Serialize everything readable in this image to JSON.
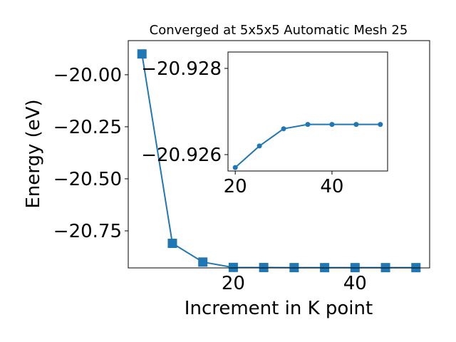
{
  "chart_data": [
    {
      "type": "line",
      "title": "Converged at 5x5x5 Automatic Mesh 25",
      "xlabel": "Increment in K point",
      "ylabel": "Energy (eV)",
      "xlim": [
        2.75,
        52.25
      ],
      "ylim": [
        -20.928,
        -19.836
      ],
      "xticks": [
        20,
        40
      ],
      "yticks": [
        -20.0,
        -20.25,
        -20.5,
        -20.75
      ],
      "ytick_labels": [
        "−20.00",
        "−20.25",
        "−20.50",
        "−20.75"
      ],
      "marker": "square",
      "color": "#1f77b4",
      "grid": false,
      "x": [
        5,
        10,
        15,
        20,
        25,
        30,
        35,
        40,
        45,
        50
      ],
      "y": [
        -19.9,
        -20.81,
        -20.9,
        -20.9257,
        -20.9262,
        -20.9266,
        -20.9267,
        -20.9267,
        -20.9267,
        -20.9267
      ]
    },
    {
      "type": "line",
      "title": "",
      "xlabel": "",
      "ylabel": "",
      "xlim": [
        18.5,
        51.5
      ],
      "ylim": [
        -20.92562,
        -20.92838
      ],
      "xticks": [
        20,
        40
      ],
      "yticks": [
        -20.928,
        -20.926
      ],
      "ytick_labels": [
        "−20.928",
        "−20.926"
      ],
      "marker": "circle",
      "color": "#1f77b4",
      "grid": false,
      "x": [
        20,
        25,
        30,
        35,
        40,
        45,
        50
      ],
      "y": [
        -20.9257,
        -20.9262,
        -20.9266,
        -20.9267,
        -20.9267,
        -20.9267,
        -20.9267
      ]
    }
  ]
}
